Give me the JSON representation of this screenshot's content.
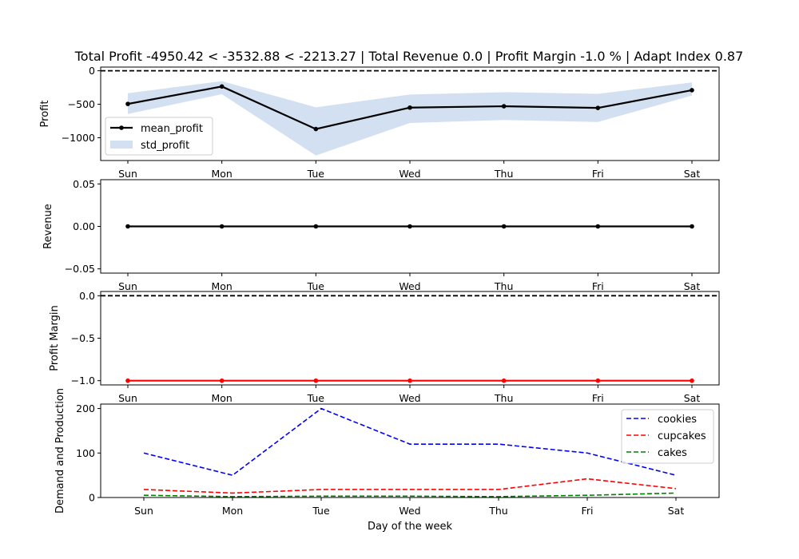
{
  "figure": {
    "title": "Total Profit -4950.42 < -3532.88 < -2213.27 | Total Revenue 0.0 | Profit Margin -1.0 % | Adapt Index 0.87"
  },
  "chart_data": [
    {
      "id": "profit",
      "type": "line",
      "categories": [
        "Sun",
        "Mon",
        "Tue",
        "Wed",
        "Thu",
        "Fri",
        "Sat"
      ],
      "ylabel": "Profit",
      "xlabel": "",
      "ylim": [
        -1340,
        55
      ],
      "yticks": [
        0,
        -500,
        -1000
      ],
      "ytick_labels": [
        "0",
        "−500",
        "−1000"
      ],
      "reference_line": 0,
      "series": [
        {
          "name": "mean_profit",
          "values": [
            -495,
            -235,
            -870,
            -550,
            -530,
            -555,
            -290
          ],
          "color": "#000000",
          "style": "solid-marker"
        },
        {
          "name": "std_profit",
          "type": "band",
          "lower": [
            -645,
            -350,
            -1265,
            -780,
            -735,
            -765,
            -370
          ],
          "upper": [
            -335,
            -155,
            -545,
            -355,
            -320,
            -345,
            -175
          ],
          "color": "#aec7e8"
        }
      ],
      "legend": "center-left"
    },
    {
      "id": "revenue",
      "type": "line",
      "categories": [
        "Sun",
        "Mon",
        "Tue",
        "Wed",
        "Thu",
        "Fri",
        "Sat"
      ],
      "ylabel": "Revenue",
      "xlabel": "",
      "ylim": [
        -0.055,
        0.055
      ],
      "yticks": [
        0.05,
        0,
        -0.05
      ],
      "ytick_labels": [
        "0.05",
        "0.00",
        "−0.05"
      ],
      "series": [
        {
          "values": [
            0,
            0,
            0,
            0,
            0,
            0,
            0
          ],
          "color": "#000000",
          "style": "solid-marker"
        }
      ]
    },
    {
      "id": "margin",
      "type": "line",
      "categories": [
        "Sun",
        "Mon",
        "Tue",
        "Wed",
        "Thu",
        "Fri",
        "Sat"
      ],
      "ylabel": "Profit Margin",
      "xlabel": "",
      "ylim": [
        -1.05,
        0.05
      ],
      "yticks": [
        0,
        -0.5,
        -1
      ],
      "ytick_labels": [
        "0.0",
        "−0.5",
        "−1.0"
      ],
      "reference_line": 0,
      "series": [
        {
          "values": [
            -1,
            -1,
            -1,
            -1,
            -1,
            -1,
            -1
          ],
          "color": "#ff0000",
          "style": "solid-marker"
        }
      ]
    },
    {
      "id": "demand",
      "type": "line",
      "categories": [
        "Sun",
        "Mon",
        "Tue",
        "Wed",
        "Thu",
        "Fri",
        "Sat"
      ],
      "ylabel": "Demand and Production",
      "xlabel": "Day of the week",
      "ylim": [
        0,
        210
      ],
      "yticks": [
        0,
        100,
        200
      ],
      "ytick_labels": [
        "0",
        "100",
        "200"
      ],
      "series": [
        {
          "name": "cookies",
          "values": [
            100,
            50,
            200,
            120,
            120,
            100,
            50
          ],
          "color": "#0000ff",
          "style": "dashed"
        },
        {
          "name": "cupcakes",
          "values": [
            18,
            10,
            18,
            18,
            18,
            42,
            20
          ],
          "color": "#ff0000",
          "style": "dashed"
        },
        {
          "name": "cakes",
          "values": [
            5,
            2,
            3,
            3,
            2,
            5,
            10
          ],
          "color": "#008000",
          "style": "dashed"
        }
      ],
      "legend": "top-right"
    }
  ]
}
